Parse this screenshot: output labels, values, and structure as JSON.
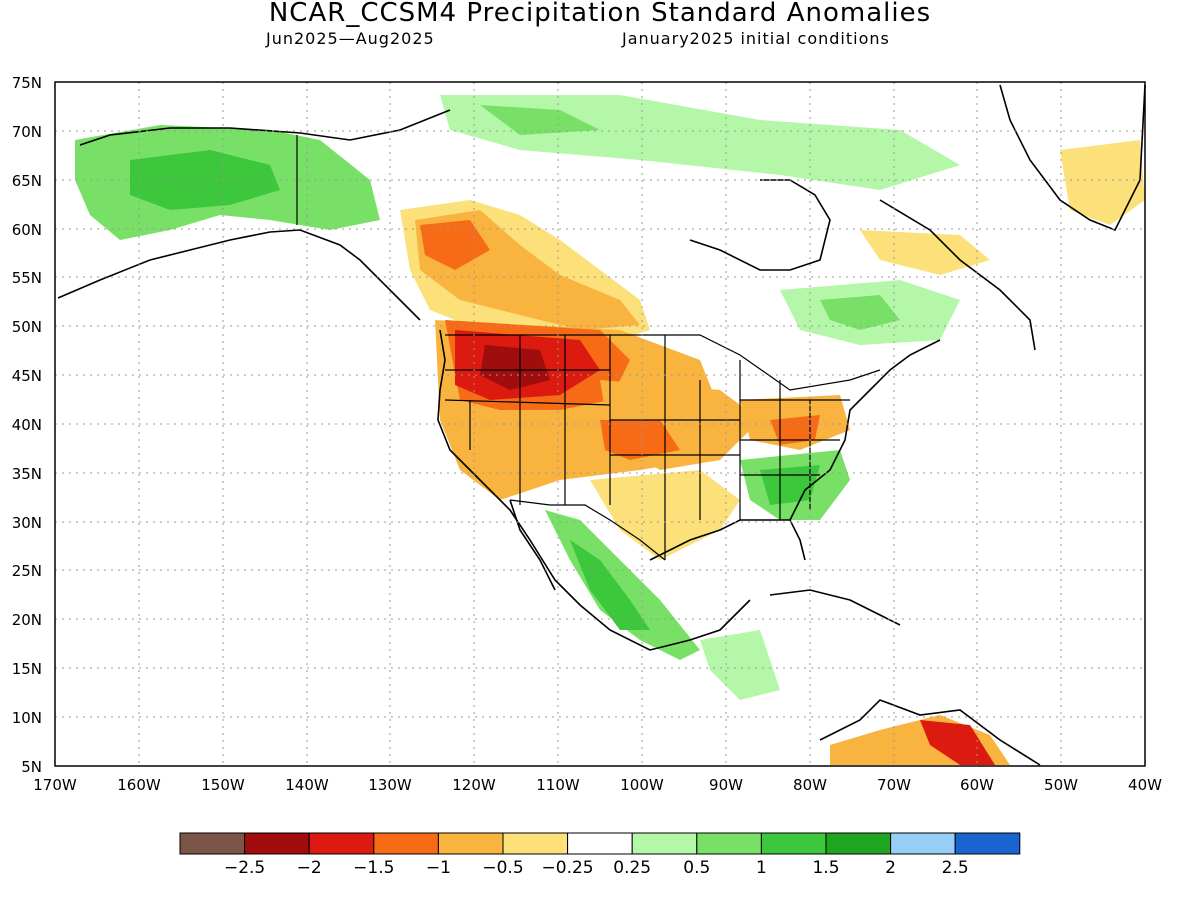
{
  "title": "NCAR_CCSM4 Precipitation Standard Anomalies",
  "subtitle_left": "Jun2025—Aug2025",
  "subtitle_right": "January2025 initial conditions",
  "axes": {
    "lat_labels": [
      "75N",
      "70N",
      "65N",
      "60N",
      "55N",
      "50N",
      "45N",
      "40N",
      "35N",
      "30N",
      "25N",
      "20N",
      "15N",
      "10N",
      "5N"
    ],
    "lon_labels": [
      "170W",
      "160W",
      "150W",
      "140W",
      "130W",
      "120W",
      "110W",
      "100W",
      "90W",
      "80W",
      "70W",
      "60W",
      "50W",
      "40W"
    ]
  },
  "legend": {
    "colors": [
      "#7a5548",
      "#a10d0d",
      "#dd1a10",
      "#f76b16",
      "#f9b440",
      "#fce07a",
      "#ffffff",
      "#b4f7a8",
      "#78e066",
      "#3cc73c",
      "#1fa51f",
      "#96cef5",
      "#1a64d2"
    ],
    "labels": [
      "−2.5",
      "−2",
      "−1.5",
      "−1",
      "−0.5",
      "−0.25",
      "0.25",
      "0.5",
      "1",
      "1.5",
      "2",
      "2.5"
    ]
  }
}
